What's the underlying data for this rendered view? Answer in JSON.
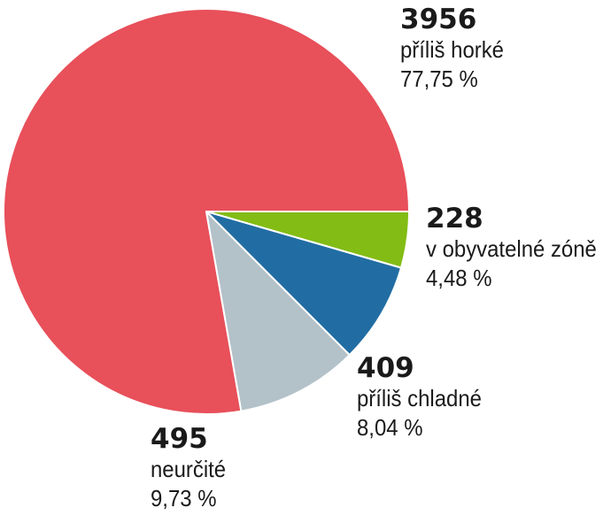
{
  "chart_data": {
    "type": "pie",
    "title": "",
    "slices": [
      {
        "label": "příliš horké",
        "value": 3956,
        "percent": "77,75 %",
        "color": "#e8505a"
      },
      {
        "label": "v obyvatelné zóně",
        "value": 228,
        "percent": "4,48 %",
        "color": "#82bc14"
      },
      {
        "label": "příliš chladné",
        "value": 409,
        "percent": "8,04 %",
        "color": "#216da3"
      },
      {
        "label": "neurčité",
        "value": 495,
        "percent": "9,73 %",
        "color": "#b3c1c8"
      }
    ],
    "value_labels": [
      "3956",
      "228",
      "409",
      "495"
    ],
    "start_angle_deg": -90,
    "direction": "counterclockwise"
  }
}
